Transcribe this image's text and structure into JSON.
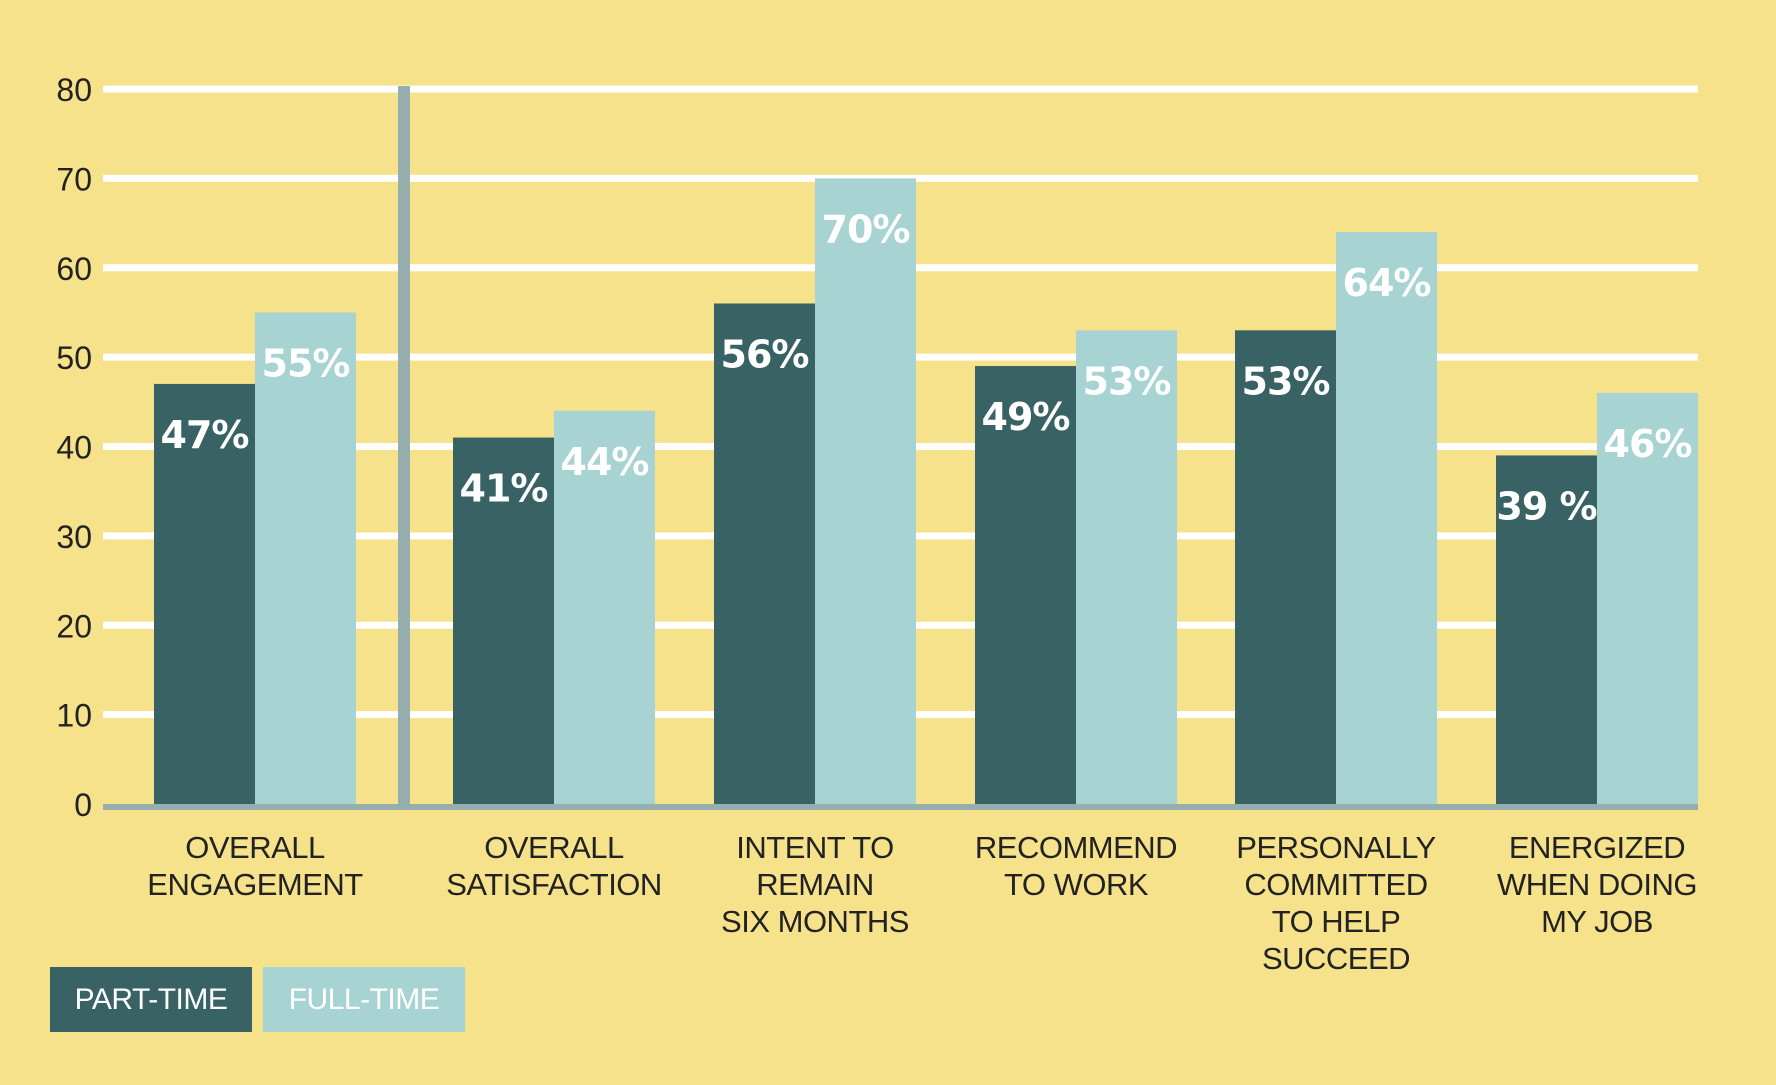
{
  "chart_data": {
    "type": "bar",
    "title": "",
    "xlabel": "",
    "ylabel": "",
    "ylim": [
      0,
      80
    ],
    "yticks": [
      0,
      10,
      20,
      30,
      40,
      50,
      60,
      70,
      80
    ],
    "categories": [
      [
        "OVERALL",
        "ENGAGEMENT"
      ],
      [
        "OVERALL",
        "SATISFACTION"
      ],
      [
        "INTENT TO",
        "REMAIN",
        "SIX MONTHS"
      ],
      [
        "RECOMMEND",
        "TO WORK"
      ],
      [
        "PERSONALLY",
        "COMMITTED",
        "TO HELP",
        "SUCCEED"
      ],
      [
        "ENERGIZED",
        "WHEN DOING",
        "MY JOB"
      ]
    ],
    "series": [
      {
        "name": "PART-TIME",
        "color": "#386263",
        "values": [
          47,
          41,
          56,
          49,
          53,
          39
        ],
        "labels": [
          "47%",
          "41%",
          "56%",
          "49%",
          "53%",
          "39 %"
        ]
      },
      {
        "name": "FULL-TIME",
        "color": "#a8d3d3",
        "values": [
          55,
          44,
          70,
          53,
          64,
          46
        ],
        "labels": [
          "55%",
          "44%",
          "70%",
          "53%",
          "64%",
          "46%"
        ]
      }
    ],
    "grid": true,
    "legend": "bottom-left"
  },
  "colors": {
    "background": "#f5e28a",
    "gridline": "#ffffff",
    "axis": "#97aeae",
    "text": "#222222"
  },
  "legend": {
    "part_time": "PART-TIME",
    "full_time": "FULL-TIME"
  }
}
